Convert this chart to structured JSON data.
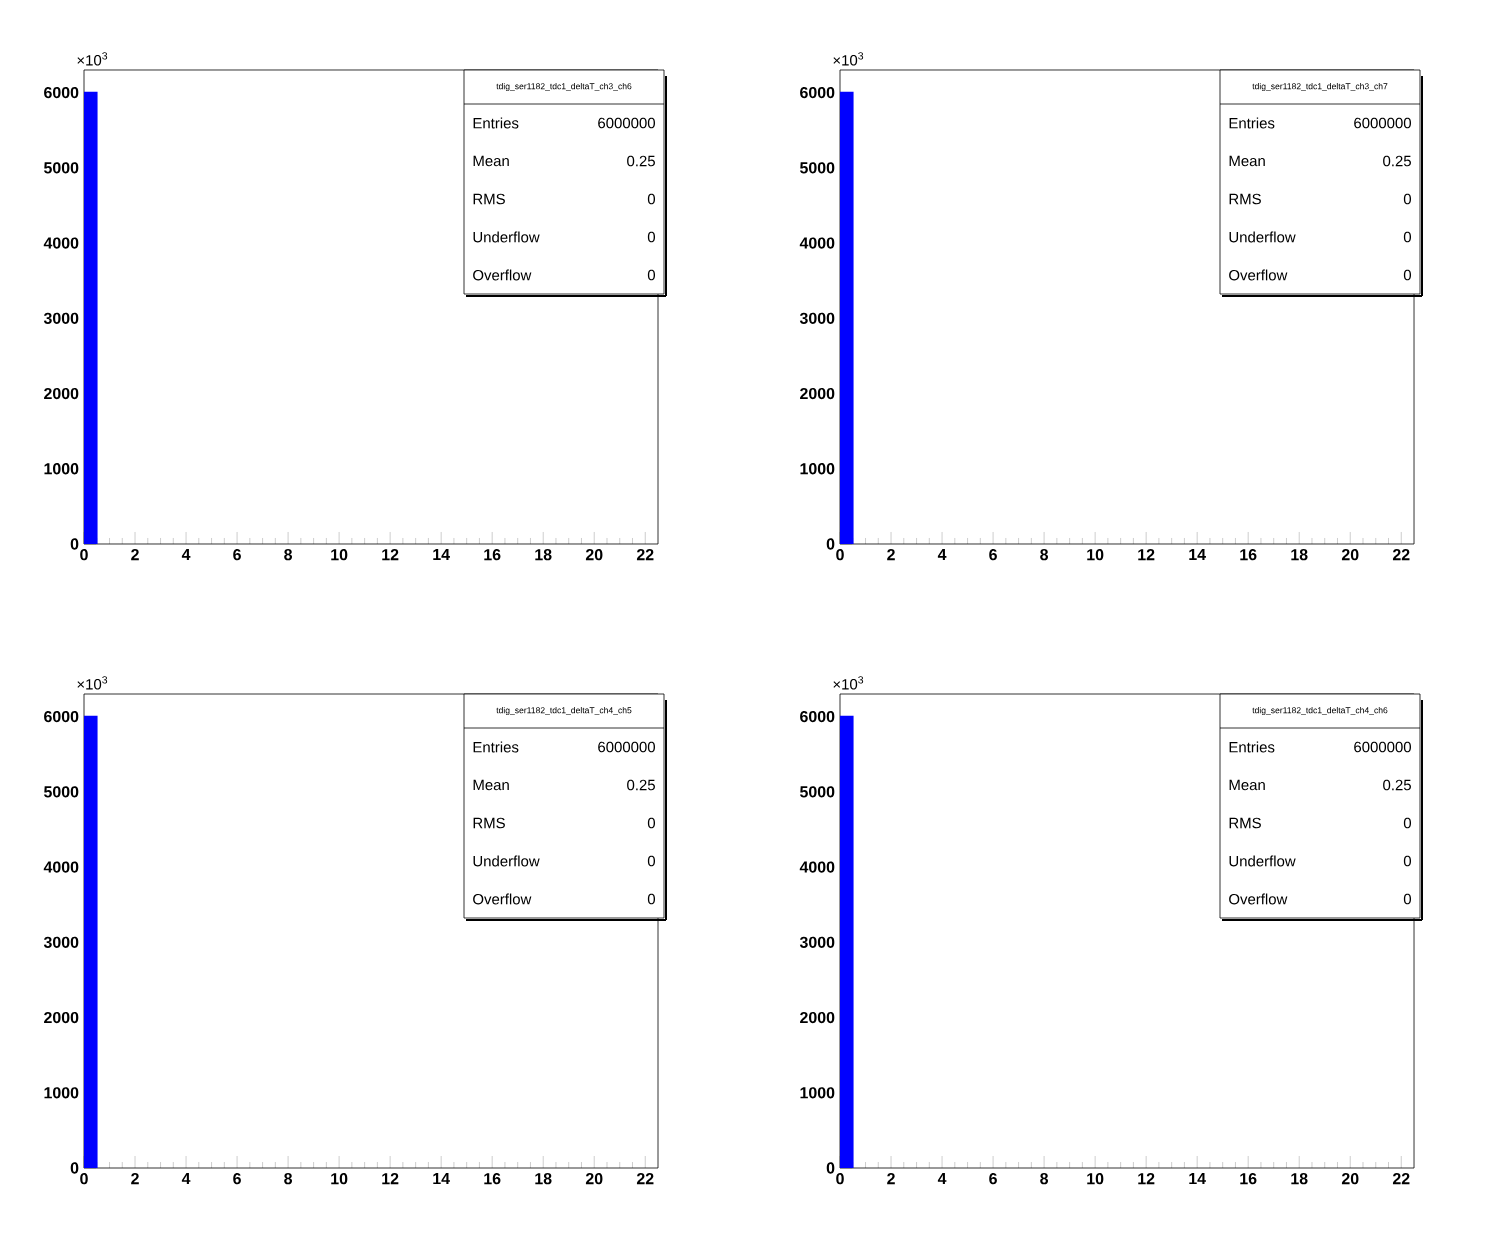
{
  "chart_data": [
    {
      "type": "histogram",
      "title": "tdig_ser1182_tdc1_deltaT_ch3_ch6",
      "color": "#0000ff",
      "bins": [
        0,
        0.5
      ],
      "values": [
        6000
      ],
      "xlim": [
        0,
        22.5
      ],
      "ylim": [
        0,
        6300
      ],
      "xticks": [
        0,
        2,
        4,
        6,
        8,
        10,
        12,
        14,
        16,
        18,
        20,
        22
      ],
      "yticks": [
        0,
        1000,
        2000,
        3000,
        4000,
        5000,
        6000
      ],
      "annotations": [
        "×10$^{3}$",
        "Entries",
        "6000000",
        "Mean",
        "0.25",
        "RMS",
        "0",
        "Underflow",
        "0",
        "Overflow",
        "0"
      ]
    },
    {
      "type": "histogram",
      "title": "tdig_ser1182_tdc1_deltaT_ch3_ch7",
      "color": "#0000ff",
      "bins": [
        0,
        0.5
      ],
      "values": [
        6000
      ],
      "xlim": [
        0,
        22.5
      ],
      "ylim": [
        0,
        6300
      ],
      "xticks": [
        0,
        2,
        4,
        6,
        8,
        10,
        12,
        14,
        16,
        18,
        20,
        22
      ],
      "yticks": [
        0,
        1000,
        2000,
        3000,
        4000,
        5000,
        6000
      ],
      "annotations": [
        "×10$^{3}$",
        "Entries",
        "6000000",
        "Mean",
        "0.25",
        "RMS",
        "0",
        "Underflow",
        "0",
        "Overflow",
        "0"
      ]
    },
    {
      "type": "histogram",
      "title": "tdig_ser1182_tdc1_deltaT_ch4_ch5",
      "color": "#0000ff",
      "bins": [
        0,
        0.5
      ],
      "values": [
        6000
      ],
      "xlim": [
        0,
        22.5
      ],
      "ylim": [
        0,
        6300
      ],
      "xticks": [
        0,
        2,
        4,
        6,
        8,
        10,
        12,
        14,
        16,
        18,
        20,
        22
      ],
      "yticks": [
        0,
        1000,
        2000,
        3000,
        4000,
        5000,
        6000
      ],
      "annotations": [
        "×10$^{3}$",
        "Entries",
        "6000000",
        "Mean",
        "0.25",
        "RMS",
        "0",
        "Underflow",
        "0",
        "Overflow",
        "0"
      ]
    },
    {
      "type": "histogram",
      "title": "tdig_ser1182_tdc1_deltaT_ch4_ch6",
      "color": "#0000ff",
      "bins": [
        0,
        0.5
      ],
      "values": [
        6000
      ],
      "xlim": [
        0,
        22.5
      ],
      "ylim": [
        0,
        6300
      ],
      "xticks": [
        0,
        2,
        4,
        6,
        8,
        10,
        12,
        14,
        16,
        18,
        20,
        22
      ],
      "yticks": [
        0,
        1000,
        2000,
        3000,
        4000,
        5000,
        6000
      ],
      "annotations": [
        "×10$^{3}$",
        "Entries",
        "6000000",
        "Mean",
        "0.25",
        "RMS",
        "0",
        "Underflow",
        "0",
        "Overflow",
        "0"
      ]
    }
  ]
}
